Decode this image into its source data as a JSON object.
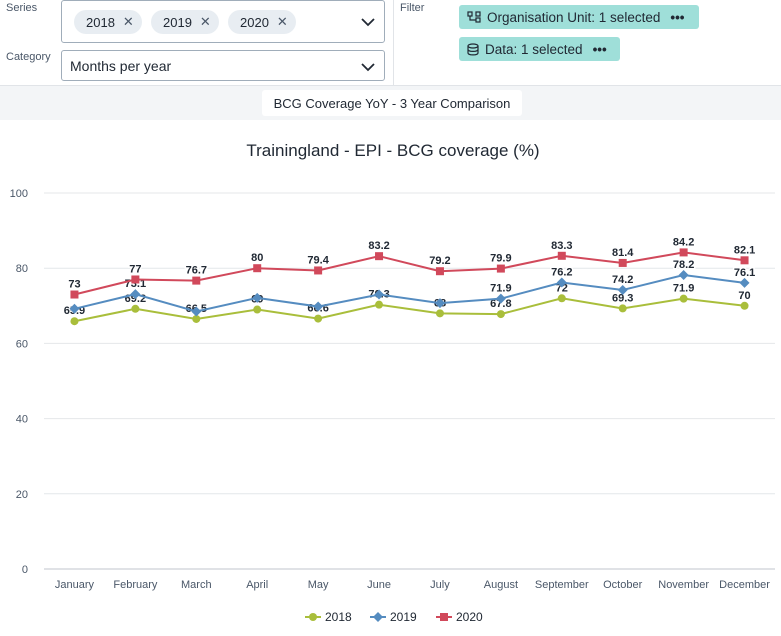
{
  "controls": {
    "series_label": "Series",
    "series_chips": [
      "2018",
      "2019",
      "2020"
    ],
    "category_label": "Category",
    "category_value": "Months per year",
    "filter_label": "Filter",
    "filter_items": [
      "Organisation Unit: 1 selected",
      "Data: 1 selected"
    ]
  },
  "visualization_title": "BCG Coverage YoY - 3 Year Comparison",
  "colors": {
    "2018": "#a9be3b",
    "2019": "#558cc0",
    "2020": "#d1495b"
  },
  "chart_data": {
    "type": "line",
    "title": "Trainingland - EPI - BCG coverage (%)",
    "xlabel": "",
    "ylabel": "",
    "categories": [
      "January",
      "February",
      "March",
      "April",
      "May",
      "June",
      "July",
      "August",
      "September",
      "October",
      "November",
      "December"
    ],
    "ylim": [
      0,
      100
    ],
    "yticks": [
      0,
      20,
      40,
      60,
      80,
      100
    ],
    "grid": true,
    "legend_position": "bottom",
    "series": [
      {
        "name": "2018",
        "marker": "circle",
        "values": [
          65.9,
          69.2,
          66.5,
          69,
          66.6,
          70.3,
          68,
          67.8,
          72,
          69.3,
          71.9,
          70
        ]
      },
      {
        "name": "2019",
        "marker": "diamond",
        "values": [
          69.2,
          73.1,
          68.5,
          72.1,
          69.8,
          73,
          70.7,
          71.9,
          76.2,
          74.2,
          78.2,
          76.1
        ],
        "labels": [
          "",
          "73.1",
          "",
          "",
          "",
          "",
          "",
          "71.9",
          "76.2",
          "74.2",
          "78.2",
          "76.1"
        ]
      },
      {
        "name": "2020",
        "marker": "square",
        "values": [
          73,
          77,
          76.7,
          80,
          79.4,
          83.2,
          79.2,
          79.9,
          83.3,
          81.4,
          84.2,
          82.1
        ]
      }
    ]
  }
}
